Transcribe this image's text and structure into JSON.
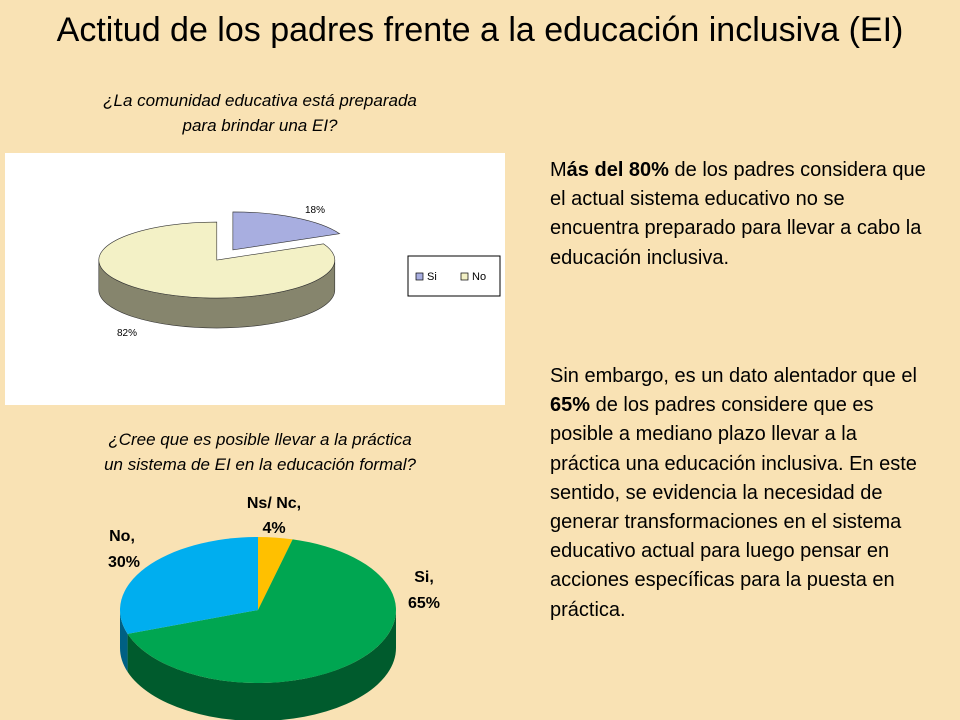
{
  "title": "Actitud de los padres frente a la educación inclusiva (EI)",
  "chart_data": [
    {
      "type": "pie",
      "title_lines": [
        "¿La comunidad educativa está preparada",
        "para brindar una EI?"
      ],
      "categories": [
        "Si",
        "No"
      ],
      "values": [
        18,
        82
      ],
      "labels": [
        "18%",
        "82%"
      ],
      "legend": [
        "Si",
        "No"
      ],
      "legend_position": "right",
      "colors": {
        "Si": "#a8aee0",
        "No": "#f3f1c6"
      },
      "exploded": true,
      "three_d": true
    },
    {
      "type": "pie",
      "title_lines": [
        "¿Cree que es posible llevar a la práctica",
        "un sistema de EI en la educación formal?"
      ],
      "categories": [
        "Si",
        "No",
        "Ns/ Nc"
      ],
      "values": [
        65,
        30,
        4
      ],
      "labels": [
        [
          "Si,",
          "65%"
        ],
        [
          "No,",
          "30%"
        ],
        [
          "Ns/ Nc,",
          "4%"
        ]
      ],
      "colors": {
        "Si": "#00a651",
        "No": "#00aeef",
        "Ns/ Nc": "#ffc000"
      },
      "three_d": true
    }
  ],
  "paragraphs": [
    {
      "parts": [
        {
          "text": "M",
          "bold": false
        },
        {
          "text": "ás del 80%",
          "bold": true
        },
        {
          "text": " de los padres considera que el actual sistema educativo no se encuentra preparado para llevar a cabo la educación inclusiva.",
          "bold": false
        }
      ]
    },
    {
      "parts": [
        {
          "text": "Sin embargo, es un dato alentador que el ",
          "bold": false
        },
        {
          "text": "65%",
          "bold": true
        },
        {
          "text": " de los padres considere que es posible a mediano plazo llevar a la práctica una educación inclusiva. En este sentido, se evidencia la necesidad de generar transformaciones en el sistema educativo actual para luego pensar en acciones específicas para la puesta en práctica.",
          "bold": false
        }
      ]
    }
  ]
}
